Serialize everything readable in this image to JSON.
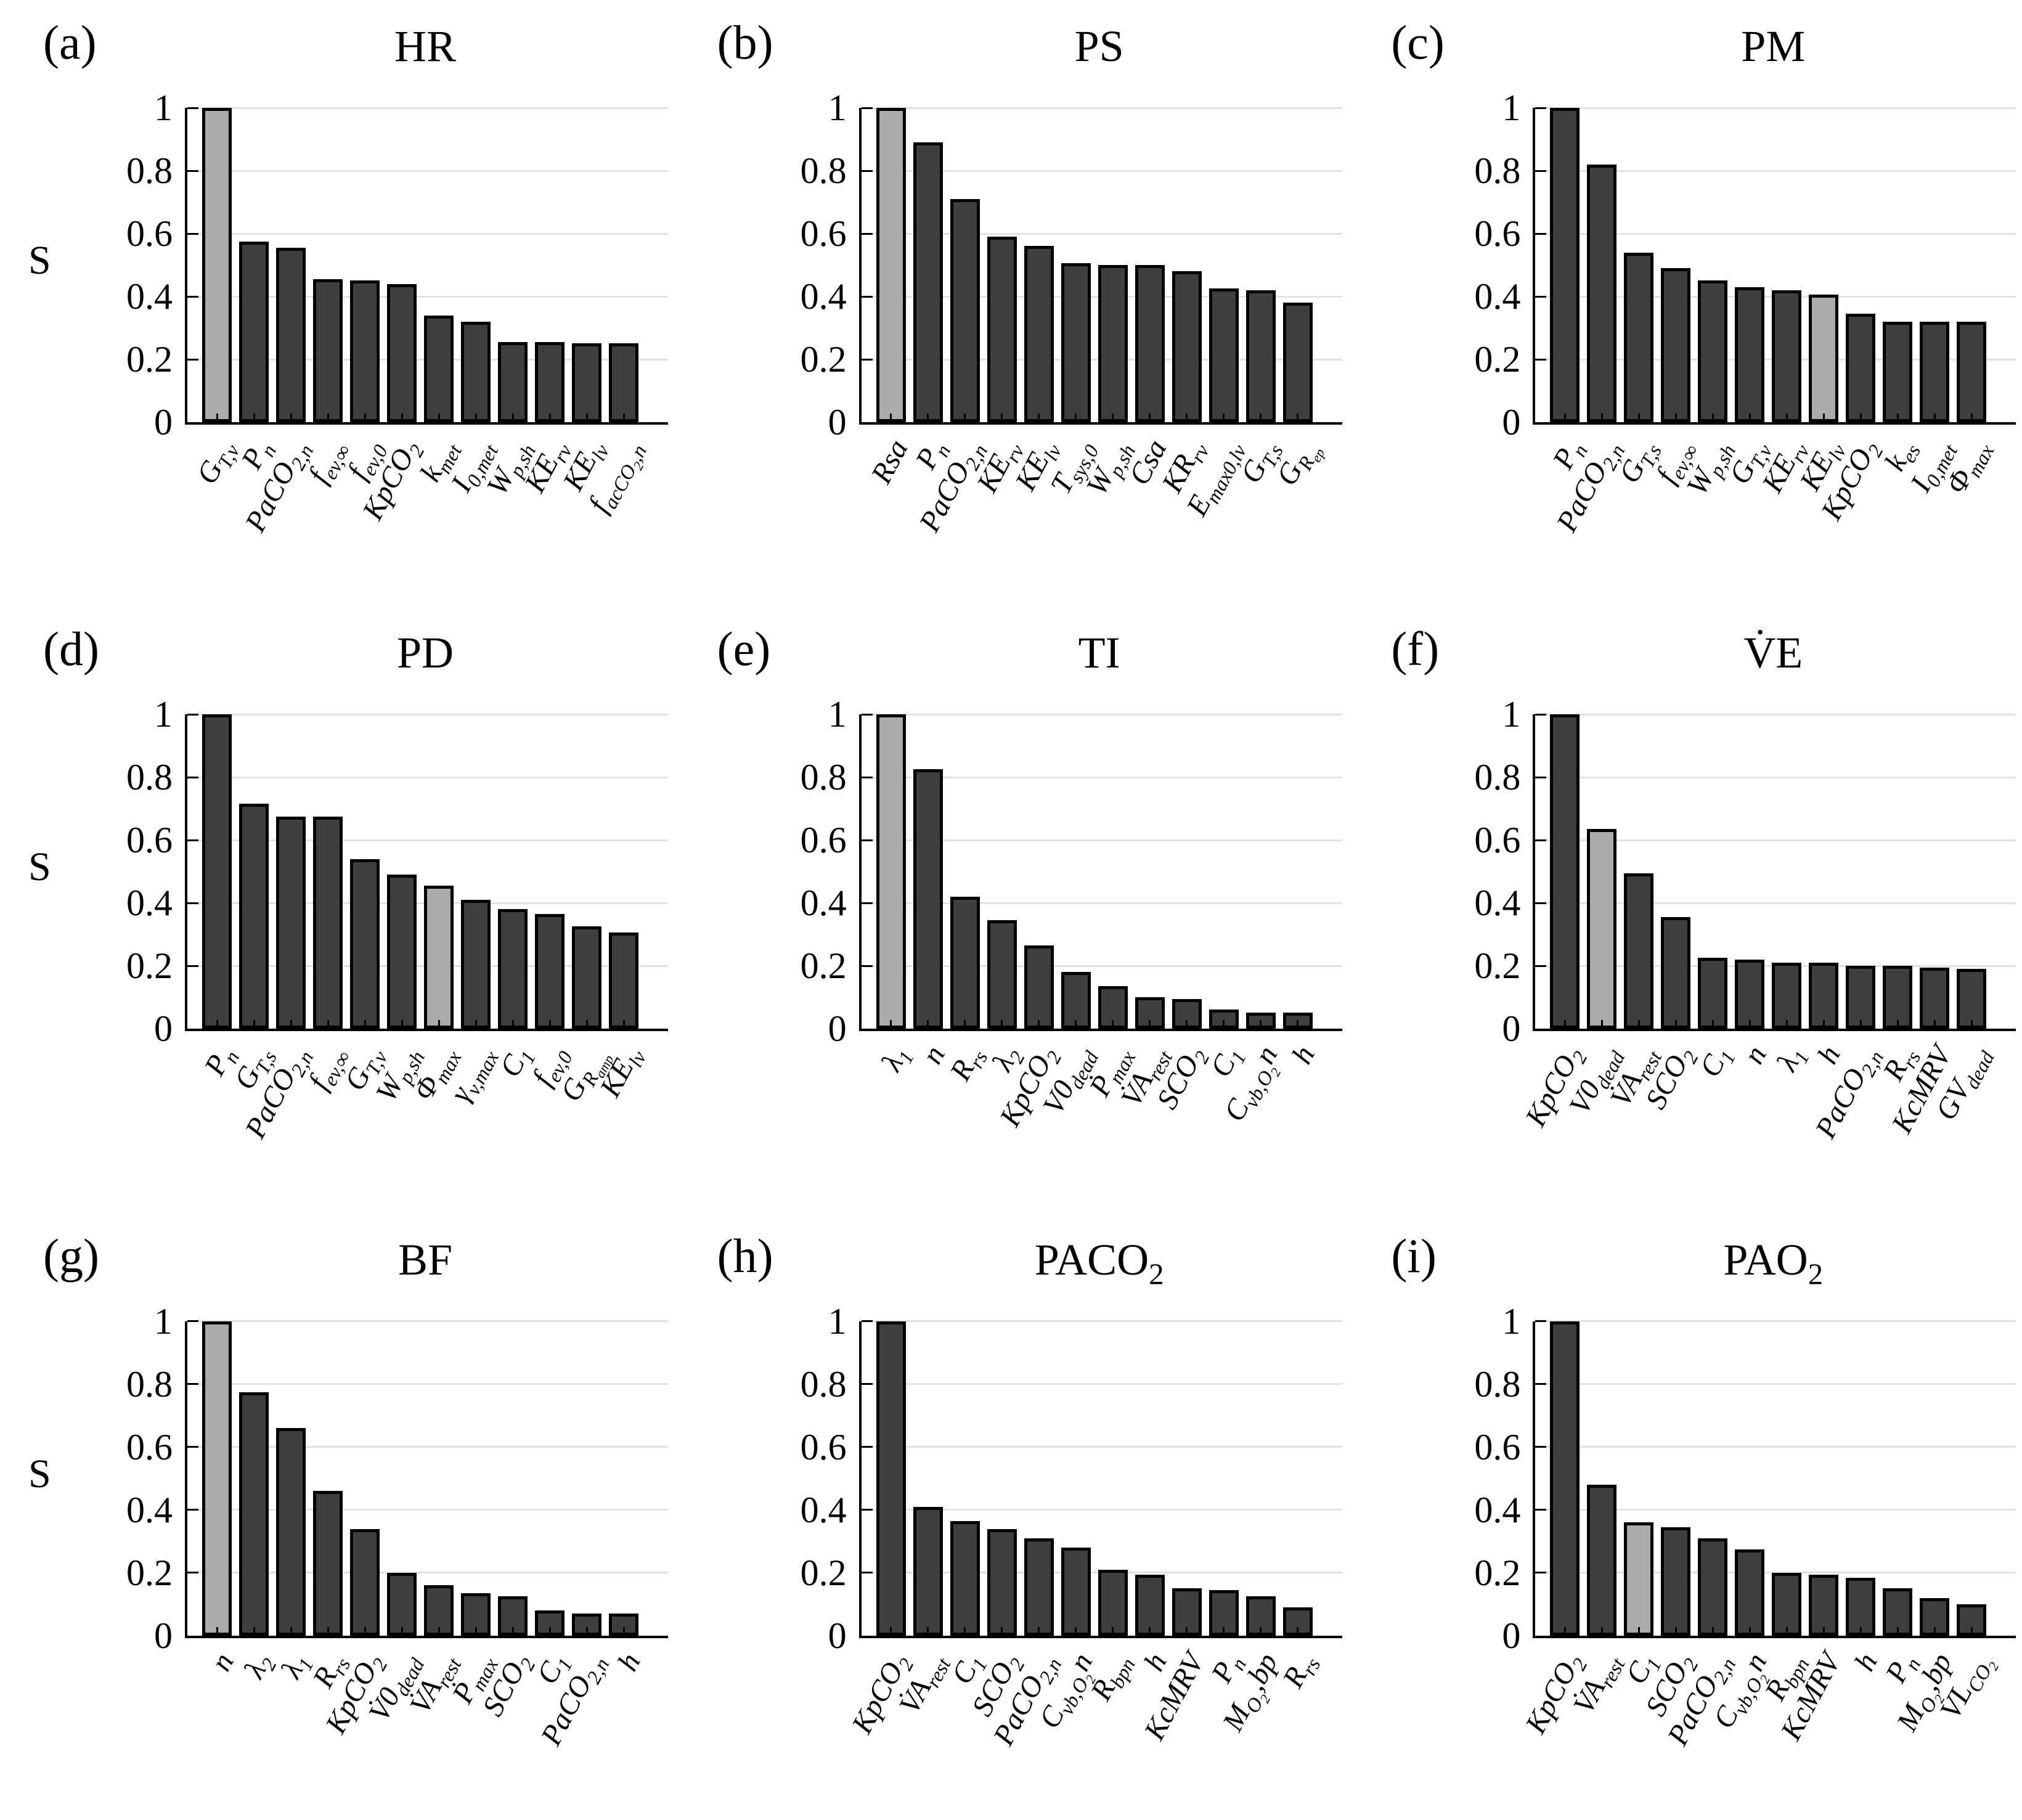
{
  "figure": {
    "background": "#ffffff",
    "styles": {
      "bar_color": "#3f3f3f",
      "highlight_color": "#ababab",
      "edge_color": "#000000",
      "grid_color": "#e2e2e2"
    }
  },
  "chart_data": {
    "type": "bar",
    "ylabel": "S",
    "ylim": [
      0,
      1
    ],
    "grid": "horizontal",
    "legend": "none",
    "yticks": [
      {
        "label": "0",
        "value": 0
      },
      {
        "label": "0.2",
        "value": 0.2
      },
      {
        "label": "0.4",
        "value": 0.4
      },
      {
        "label": "0.6",
        "value": 0.6
      },
      {
        "label": "0.8",
        "value": 0.8
      },
      {
        "label": "1",
        "value": 1
      }
    ],
    "panels": [
      {
        "panel": "(a)",
        "title": "HR",
        "id": "hr",
        "show_ylabel": true,
        "bars": [
          {
            "label": "G_{T,v}",
            "value": 1.0,
            "highlight": true
          },
          {
            "label": "P_{n}",
            "value": 0.575,
            "highlight": false
          },
          {
            "label": "PaCO_{2,n}",
            "value": 0.555,
            "highlight": false
          },
          {
            "label": "f_{ev,∞}",
            "value": 0.455,
            "highlight": false
          },
          {
            "label": "f_{ev,0}",
            "value": 0.45,
            "highlight": false
          },
          {
            "label": "KpCO_{2}",
            "value": 0.44,
            "highlight": false
          },
          {
            "label": "k_{met}",
            "value": 0.34,
            "highlight": false
          },
          {
            "label": "I_{0,met}",
            "value": 0.32,
            "highlight": false
          },
          {
            "label": "W_{p,sh}",
            "value": 0.255,
            "highlight": false
          },
          {
            "label": "KE_{rv}",
            "value": 0.255,
            "highlight": false
          },
          {
            "label": "KE_{lv}",
            "value": 0.25,
            "highlight": false
          },
          {
            "label": "f_{acCO_{2},n}",
            "value": 0.25,
            "highlight": false
          }
        ]
      },
      {
        "panel": "(b)",
        "title": "PS",
        "id": "ps",
        "show_ylabel": false,
        "bars": [
          {
            "label": "Rsa",
            "value": 1.0,
            "highlight": true
          },
          {
            "label": "P_{n}",
            "value": 0.89,
            "highlight": false
          },
          {
            "label": "PaCO_{2,n}",
            "value": 0.71,
            "highlight": false
          },
          {
            "label": "KE_{rv}",
            "value": 0.59,
            "highlight": false
          },
          {
            "label": "KE_{lv}",
            "value": 0.56,
            "highlight": false
          },
          {
            "label": "T_{sys,0}",
            "value": 0.505,
            "highlight": false
          },
          {
            "label": "W_{p,sh}",
            "value": 0.5,
            "highlight": false
          },
          {
            "label": "Csa",
            "value": 0.5,
            "highlight": false
          },
          {
            "label": "KR_{rv}",
            "value": 0.48,
            "highlight": false
          },
          {
            "label": "E_{max0,lv}",
            "value": 0.425,
            "highlight": false
          },
          {
            "label": "G_{T,s}",
            "value": 0.42,
            "highlight": false
          },
          {
            "label": "G_{R_{ep}}",
            "value": 0.38,
            "highlight": false
          }
        ]
      },
      {
        "panel": "(c)",
        "title": "PM",
        "id": "pm",
        "show_ylabel": false,
        "bars": [
          {
            "label": "P_{n}",
            "value": 1.0,
            "highlight": false
          },
          {
            "label": "PaCO_{2,n}",
            "value": 0.82,
            "highlight": false
          },
          {
            "label": "G_{T,s}",
            "value": 0.54,
            "highlight": false
          },
          {
            "label": "f_{ev,∞}",
            "value": 0.49,
            "highlight": false
          },
          {
            "label": "W_{p,sh}",
            "value": 0.45,
            "highlight": false
          },
          {
            "label": "G_{T,v}",
            "value": 0.43,
            "highlight": false
          },
          {
            "label": "KE_{rv}",
            "value": 0.42,
            "highlight": false
          },
          {
            "label": "KE_{lv}",
            "value": 0.405,
            "highlight": true
          },
          {
            "label": "KpCO_{2}",
            "value": 0.345,
            "highlight": false
          },
          {
            "label": "k_{es}",
            "value": 0.32,
            "highlight": false
          },
          {
            "label": "I_{0,met}",
            "value": 0.32,
            "highlight": false
          },
          {
            "label": "Φ_{max}",
            "value": 0.32,
            "highlight": false
          }
        ]
      },
      {
        "panel": "(d)",
        "title": "PD",
        "id": "pd",
        "show_ylabel": true,
        "bars": [
          {
            "label": "P_{n}",
            "value": 1.0,
            "highlight": false
          },
          {
            "label": "G_{T,s}",
            "value": 0.715,
            "highlight": false
          },
          {
            "label": "PaCO_{2,n}",
            "value": 0.675,
            "highlight": false
          },
          {
            "label": "f_{ev,∞}",
            "value": 0.675,
            "highlight": false
          },
          {
            "label": "G_{T,v}",
            "value": 0.54,
            "highlight": false
          },
          {
            "label": "W_{p,sh}",
            "value": 0.49,
            "highlight": false
          },
          {
            "label": "Φ_{max}",
            "value": 0.455,
            "highlight": true
          },
          {
            "label": "γ_{v,max}",
            "value": 0.41,
            "highlight": false
          },
          {
            "label": "C_{1}",
            "value": 0.38,
            "highlight": false
          },
          {
            "label": "f_{ev,0}",
            "value": 0.365,
            "highlight": false
          },
          {
            "label": "G_{R_{amp}}",
            "value": 0.325,
            "highlight": false
          },
          {
            "label": "KE_{lv}",
            "value": 0.305,
            "highlight": false
          }
        ]
      },
      {
        "panel": "(e)",
        "title": "TI",
        "id": "ti",
        "show_ylabel": false,
        "bars": [
          {
            "label": "λ_{1}",
            "value": 1.0,
            "highlight": true
          },
          {
            "label": "n",
            "value": 0.825,
            "highlight": false
          },
          {
            "label": "R_{rs}",
            "value": 0.42,
            "highlight": false
          },
          {
            "label": "λ_{2}",
            "value": 0.345,
            "highlight": false
          },
          {
            "label": "KpCO_{2}",
            "value": 0.265,
            "highlight": false
          },
          {
            "label": "V0_{dead}",
            "value": 0.18,
            "highlight": false
          },
          {
            "label": "Ṗ_{max}",
            "value": 0.135,
            "highlight": false
          },
          {
            "label": "V̇A_{rest}",
            "value": 0.1,
            "highlight": false
          },
          {
            "label": "SCO_{2}",
            "value": 0.095,
            "highlight": false
          },
          {
            "label": "C_{1}",
            "value": 0.06,
            "highlight": false
          },
          {
            "label": "C_{vb,O_{2}}n",
            "value": 0.05,
            "highlight": false
          },
          {
            "label": "h",
            "value": 0.05,
            "highlight": false
          }
        ]
      },
      {
        "panel": "(f)",
        "title": "V̇E",
        "id": "ve",
        "show_ylabel": false,
        "bars": [
          {
            "label": "KpCO_{2}",
            "value": 1.0,
            "highlight": false
          },
          {
            "label": "V0_{dead}",
            "value": 0.635,
            "highlight": true
          },
          {
            "label": "V̇A_{rest}",
            "value": 0.495,
            "highlight": false
          },
          {
            "label": "SCO_{2}",
            "value": 0.355,
            "highlight": false
          },
          {
            "label": "C_{1}",
            "value": 0.225,
            "highlight": false
          },
          {
            "label": "n",
            "value": 0.22,
            "highlight": false
          },
          {
            "label": "λ_{1}",
            "value": 0.21,
            "highlight": false
          },
          {
            "label": "h",
            "value": 0.21,
            "highlight": false
          },
          {
            "label": "PaCO_{2,n}",
            "value": 0.2,
            "highlight": false
          },
          {
            "label": "R_{rs}",
            "value": 0.2,
            "highlight": false
          },
          {
            "label": "KcMRV",
            "value": 0.195,
            "highlight": false
          },
          {
            "label": "GV_{dead}",
            "value": 0.19,
            "highlight": false
          }
        ]
      },
      {
        "panel": "(g)",
        "title": "BF",
        "id": "bf",
        "show_ylabel": true,
        "bars": [
          {
            "label": "n",
            "value": 1.0,
            "highlight": true
          },
          {
            "label": "λ_{2}",
            "value": 0.775,
            "highlight": false
          },
          {
            "label": "λ_{1}",
            "value": 0.66,
            "highlight": false
          },
          {
            "label": "R_{rs}",
            "value": 0.46,
            "highlight": false
          },
          {
            "label": "KpCO_{2}",
            "value": 0.34,
            "highlight": false
          },
          {
            "label": "V̇0_{dead}",
            "value": 0.2,
            "highlight": false
          },
          {
            "label": "V̇A_{rest}",
            "value": 0.16,
            "highlight": false
          },
          {
            "label": "Ṗ_{max}",
            "value": 0.135,
            "highlight": false
          },
          {
            "label": "SCO_{2}",
            "value": 0.125,
            "highlight": false
          },
          {
            "label": "C_{1}",
            "value": 0.08,
            "highlight": false
          },
          {
            "label": "PaCO_{2,n}",
            "value": 0.07,
            "highlight": false
          },
          {
            "label": "h",
            "value": 0.07,
            "highlight": false
          }
        ]
      },
      {
        "panel": "(h)",
        "title": "PACO_{2}",
        "id": "paco2",
        "show_ylabel": false,
        "bars": [
          {
            "label": "KpCO_{2}",
            "value": 1.0,
            "highlight": false
          },
          {
            "label": "V̇A_{rest}",
            "value": 0.41,
            "highlight": false
          },
          {
            "label": "C_{1}",
            "value": 0.365,
            "highlight": false
          },
          {
            "label": "SCO_{2}",
            "value": 0.34,
            "highlight": false
          },
          {
            "label": "PaCO_{2,n}",
            "value": 0.31,
            "highlight": false
          },
          {
            "label": "C_{vb,O_{2}}n",
            "value": 0.28,
            "highlight": false
          },
          {
            "label": "R_{bpn}",
            "value": 0.21,
            "highlight": false
          },
          {
            "label": "h",
            "value": 0.195,
            "highlight": false
          },
          {
            "label": "KcMRV",
            "value": 0.15,
            "highlight": false
          },
          {
            "label": "P_{n}",
            "value": 0.145,
            "highlight": false
          },
          {
            "label": "M_{O_{2}},bp",
            "value": 0.125,
            "highlight": false
          },
          {
            "label": "R_{rs}",
            "value": 0.09,
            "highlight": false
          }
        ]
      },
      {
        "panel": "(i)",
        "title": "PAO_{2}",
        "id": "pao2",
        "show_ylabel": false,
        "bars": [
          {
            "label": "KpCO_{2}",
            "value": 1.0,
            "highlight": false
          },
          {
            "label": "V̇A_{rest}",
            "value": 0.48,
            "highlight": false
          },
          {
            "label": "C_{1}",
            "value": 0.36,
            "highlight": true
          },
          {
            "label": "SCO_{2}",
            "value": 0.345,
            "highlight": false
          },
          {
            "label": "PaCO_{2,n}",
            "value": 0.31,
            "highlight": false
          },
          {
            "label": "C_{vb,O_{2}}n",
            "value": 0.275,
            "highlight": false
          },
          {
            "label": "R_{bpn}",
            "value": 0.2,
            "highlight": false
          },
          {
            "label": "KcMRV",
            "value": 0.195,
            "highlight": false
          },
          {
            "label": "h",
            "value": 0.185,
            "highlight": false
          },
          {
            "label": "P_{n}",
            "value": 0.15,
            "highlight": false
          },
          {
            "label": "M_{O_{2}},bp",
            "value": 0.12,
            "highlight": false
          },
          {
            "label": "VL_{CO_{2}}",
            "value": 0.1,
            "highlight": false
          }
        ]
      }
    ]
  }
}
